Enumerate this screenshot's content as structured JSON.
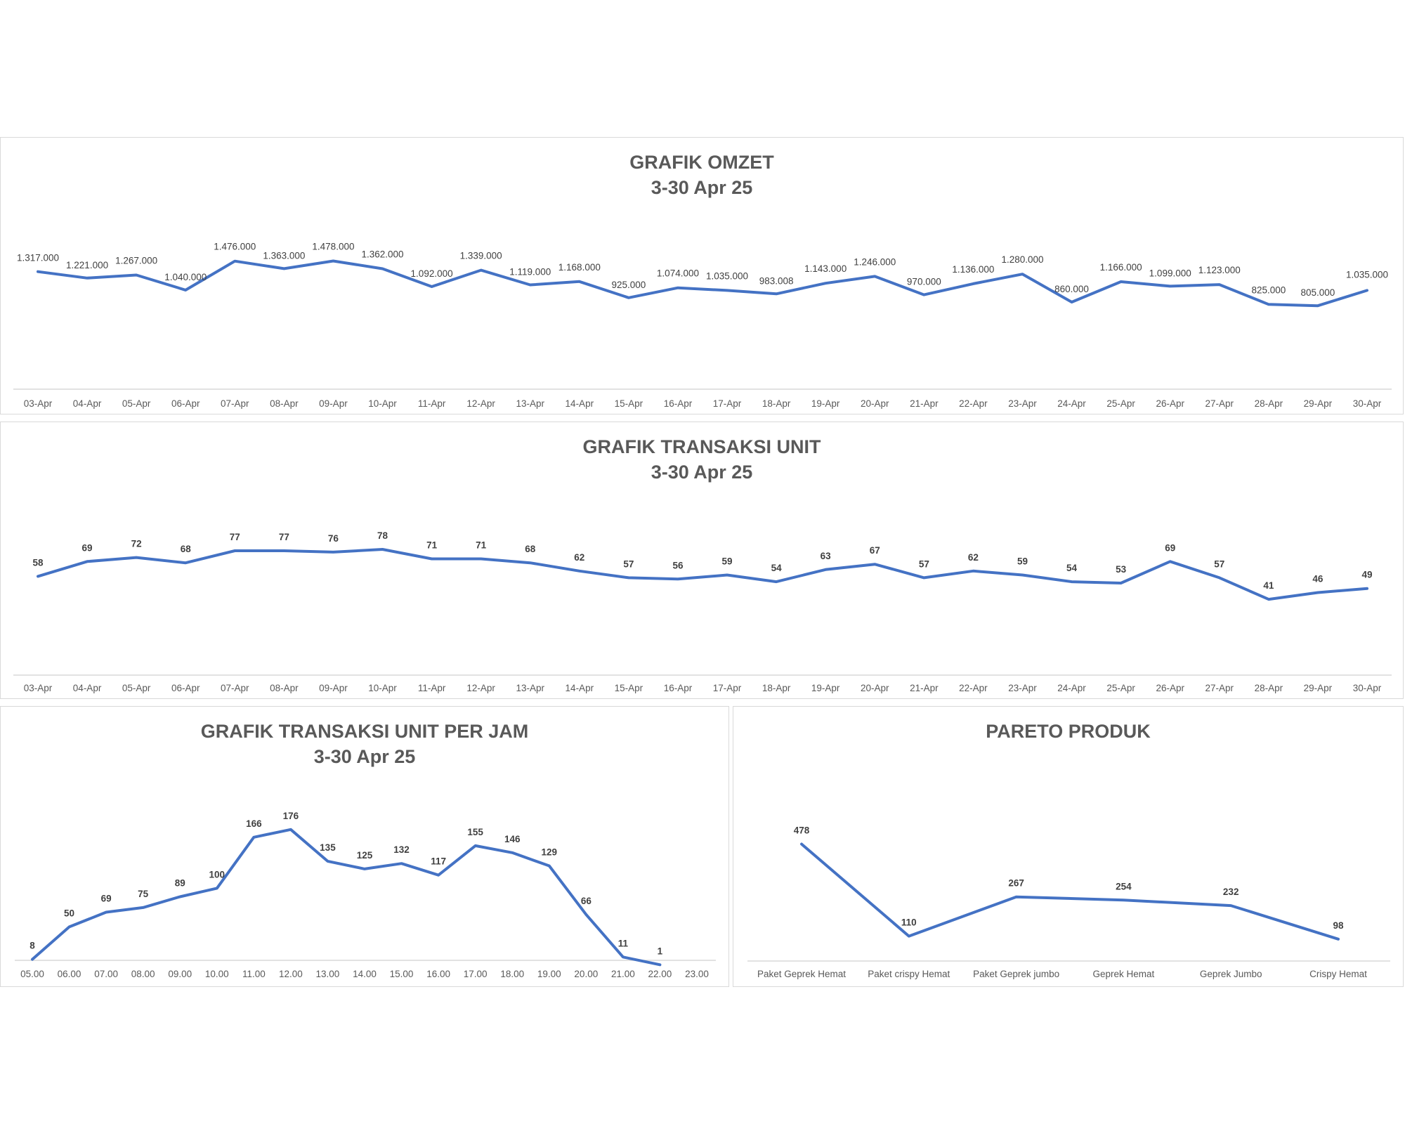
{
  "colors": {
    "line": "#4472c4",
    "axis": "#d9d9d9",
    "text": "#595959",
    "background": "#ffffff"
  },
  "chart_data": [
    {
      "type": "line",
      "title": "GRAFIK OMZET",
      "subtitle": "3-30 Apr 25",
      "categories": [
        "03-Apr",
        "04-Apr",
        "05-Apr",
        "06-Apr",
        "07-Apr",
        "08-Apr",
        "09-Apr",
        "10-Apr",
        "11-Apr",
        "12-Apr",
        "13-Apr",
        "14-Apr",
        "15-Apr",
        "16-Apr",
        "17-Apr",
        "18-Apr",
        "19-Apr",
        "20-Apr",
        "21-Apr",
        "22-Apr",
        "23-Apr",
        "24-Apr",
        "25-Apr",
        "26-Apr",
        "27-Apr",
        "28-Apr",
        "29-Apr",
        "30-Apr"
      ],
      "values": [
        1317000,
        1221000,
        1267000,
        1040000,
        1476000,
        1363000,
        1478000,
        1362000,
        1092000,
        1339000,
        1119000,
        1168000,
        925000,
        1074000,
        1035000,
        983008,
        1143000,
        1246000,
        970000,
        1136000,
        1280000,
        860000,
        1166000,
        1099000,
        1123000,
        825000,
        805000,
        1035000
      ],
      "data_labels": [
        "1.317.000",
        "1.221.000",
        "1.267.000",
        "1.040.000",
        "1.476.000",
        "1.363.000",
        "1.478.000",
        "1.362.000",
        "1.092.000",
        "1.339.000",
        "1.119.000",
        "1.168.000",
        "925.000",
        "1.074.000",
        "1.035.000",
        "983.008",
        "1.143.000",
        "1.246.000",
        "970.000",
        "1.136.000",
        "1.280.000",
        "860.000",
        "1.166.000",
        "1.099.000",
        "1.123.000",
        "825.000",
        "805.000",
        "1.035.000"
      ],
      "ylim": [
        -450000,
        1800000
      ],
      "grid": false,
      "legend": "none"
    },
    {
      "type": "line",
      "title": "GRAFIK TRANSAKSI UNIT",
      "subtitle": "3-30 Apr 25",
      "categories": [
        "03-Apr",
        "04-Apr",
        "05-Apr",
        "06-Apr",
        "07-Apr",
        "08-Apr",
        "09-Apr",
        "10-Apr",
        "11-Apr",
        "12-Apr",
        "13-Apr",
        "14-Apr",
        "15-Apr",
        "16-Apr",
        "17-Apr",
        "18-Apr",
        "19-Apr",
        "20-Apr",
        "21-Apr",
        "22-Apr",
        "23-Apr",
        "24-Apr",
        "25-Apr",
        "26-Apr",
        "27-Apr",
        "28-Apr",
        "29-Apr",
        "30-Apr"
      ],
      "values": [
        58,
        69,
        72,
        68,
        77,
        77,
        76,
        78,
        71,
        71,
        68,
        62,
        57,
        56,
        59,
        54,
        63,
        67,
        57,
        62,
        59,
        54,
        53,
        69,
        57,
        41,
        46,
        49
      ],
      "data_labels": [
        "58",
        "69",
        "72",
        "68",
        "77",
        "77",
        "76",
        "78",
        "71",
        "71",
        "68",
        "62",
        "57",
        "56",
        "59",
        "54",
        "63",
        "67",
        "57",
        "62",
        "59",
        "54",
        "53",
        "69",
        "57",
        "41",
        "46",
        "49"
      ],
      "ylim": [
        -10,
        115
      ],
      "grid": false,
      "legend": "none"
    },
    {
      "type": "line",
      "title": "GRAFIK TRANSAKSI UNIT PER JAM",
      "subtitle": "3-30 Apr 25",
      "categories": [
        "05.00",
        "06.00",
        "07.00",
        "08.00",
        "09.00",
        "10.00",
        "11.00",
        "12.00",
        "13.00",
        "14.00",
        "15.00",
        "16.00",
        "17.00",
        "18.00",
        "19.00",
        "20.00",
        "21.00",
        "22.00",
        "23.00"
      ],
      "values": [
        8,
        50,
        69,
        75,
        89,
        100,
        166,
        176,
        135,
        125,
        132,
        117,
        155,
        146,
        129,
        66,
        11,
        1,
        null
      ],
      "data_labels": [
        "8",
        "50",
        "69",
        "75",
        "89",
        "100",
        "166",
        "176",
        "135",
        "125",
        "132",
        "117",
        "155",
        "146",
        "129",
        "66",
        "11",
        "1",
        ""
      ],
      "ylim": [
        -6,
        244
      ],
      "grid": false,
      "legend": "none"
    },
    {
      "type": "line",
      "title": "PARETO PRODUK",
      "subtitle": "",
      "categories": [
        "Paket Geprek Hemat",
        "Paket crispy Hemat",
        "Paket Geprek jumbo",
        "Geprek Hemat",
        "Geprek Jumbo",
        "Crispy Hemat"
      ],
      "values": [
        478,
        110,
        267,
        254,
        232,
        98
      ],
      "data_labels": [
        "478",
        "110",
        "267",
        "254",
        "232",
        "98"
      ],
      "ylim": [
        -26,
        662
      ],
      "grid": false,
      "legend": "none"
    }
  ]
}
